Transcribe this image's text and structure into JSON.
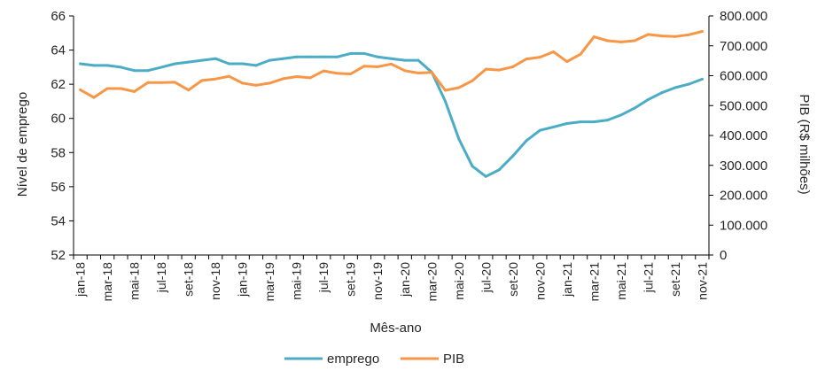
{
  "chart_data": {
    "type": "line",
    "title": "",
    "xlabel": "Mês-ano",
    "ylabel": "Nível de emprego",
    "y2label": "PIB (R$ milhões)",
    "ylim": [
      52,
      66
    ],
    "y2lim": [
      0,
      800000
    ],
    "yticks": [
      "52",
      "54",
      "56",
      "58",
      "60",
      "62",
      "64",
      "66"
    ],
    "y2ticks": [
      "0",
      "100.000",
      "200.000",
      "300.000",
      "400.000",
      "500.000",
      "600.000",
      "700.000",
      "800.000"
    ],
    "categories": [
      "jan-18",
      "fev-18",
      "mar-18",
      "abr-18",
      "mai-18",
      "jun-18",
      "jul-18",
      "ago-18",
      "set-18",
      "out-18",
      "nov-18",
      "dez-18",
      "jan-19",
      "fev-19",
      "mar-19",
      "abr-19",
      "mai-19",
      "jun-19",
      "jul-19",
      "ago-19",
      "set-19",
      "out-19",
      "nov-19",
      "dez-19",
      "jan-20",
      "fev-20",
      "mar-20",
      "abr-20",
      "mai-20",
      "jun-20",
      "jul-20",
      "ago-20",
      "set-20",
      "out-20",
      "nov-20",
      "dez-20",
      "jan-21",
      "fev-21",
      "mar-21",
      "abr-21",
      "mai-21",
      "jun-21",
      "jul-21",
      "ago-21",
      "set-21",
      "out-21",
      "nov-21"
    ],
    "tick_labels": [
      "jan-18",
      "mar-18",
      "mai-18",
      "jul-18",
      "set-18",
      "nov-18",
      "jan-19",
      "mar-19",
      "mai-19",
      "jul-19",
      "set-19",
      "nov-19",
      "jan-20",
      "mar-20",
      "mai-20",
      "jul-20",
      "set-20",
      "nov-20",
      "jan-21",
      "mar-21",
      "mai-21",
      "jul-21",
      "set-21",
      "nov-21"
    ],
    "series": [
      {
        "name": "emprego",
        "axis": "left",
        "color": "#4bacc6",
        "values": [
          63.2,
          63.1,
          63.1,
          63.0,
          62.8,
          62.8,
          63.0,
          63.2,
          63.3,
          63.4,
          63.5,
          63.2,
          63.2,
          63.1,
          63.4,
          63.5,
          63.6,
          63.6,
          63.6,
          63.6,
          63.8,
          63.8,
          63.6,
          63.5,
          63.4,
          63.4,
          62.7,
          61.0,
          58.8,
          57.2,
          56.6,
          57.0,
          57.8,
          58.7,
          59.3,
          59.5,
          59.7,
          59.8,
          59.8,
          59.9,
          60.2,
          60.6,
          61.1,
          61.5,
          61.8,
          62.0,
          62.3
        ]
      },
      {
        "name": "PIB",
        "axis": "right",
        "color": "#f79646",
        "values": [
          553000,
          527000,
          557000,
          557000,
          547000,
          577000,
          577000,
          578000,
          552000,
          584000,
          589000,
          598000,
          575000,
          568000,
          575000,
          590000,
          597000,
          593000,
          616000,
          608000,
          606000,
          632000,
          630000,
          639000,
          617000,
          609000,
          611000,
          551000,
          560000,
          583000,
          622000,
          619000,
          630000,
          656000,
          662000,
          680000,
          647000,
          672000,
          730000,
          717000,
          713000,
          717000,
          738000,
          733000,
          731000,
          737000,
          748000
        ]
      }
    ],
    "legend": "bottom"
  }
}
